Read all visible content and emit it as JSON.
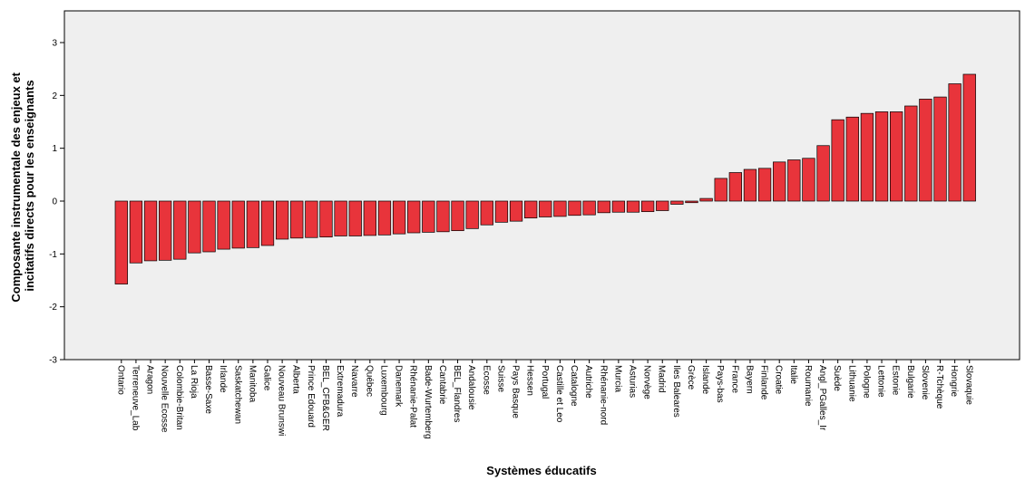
{
  "chart_data": {
    "type": "bar",
    "xlabel": "Systèmes éducatifs",
    "ylabel": [
      "Composante instrumentale des enjeux et",
      "incitatifs directs pour les enseignants"
    ],
    "ylim": [
      -3,
      3.6
    ],
    "yticks": [
      "3",
      "2",
      "1",
      "0",
      "-1",
      "-2",
      "-3"
    ],
    "grid": false,
    "bar_color": "#e8343b",
    "bar_stroke": "#000000",
    "plot_background": "#efefef",
    "categories": [
      "Ontario",
      "Terreneuve_Lab",
      "Aragon",
      "Nouvelle Ecosse",
      "Colombie-Britan",
      "La Rioja",
      "Basse-Saxe",
      "Irlande",
      "Saskatchewan",
      "Manitoba",
      "Galice",
      "Nouveau Brunswi",
      "Alberta",
      "Prince Edouard",
      "BEL_CFB&GER",
      "Extremadura",
      "Navarre",
      "Québec",
      "Luxembourg",
      "Danemark",
      "Rhénanie-Palat",
      "Bade-Wurtemberg",
      "Cantabrie",
      "BEL_Flandres",
      "Andalousie",
      "Ecosse",
      "Suisse",
      "Pays Basque",
      "Hessen",
      "Portugal",
      "Castille et Leo",
      "Catalogne",
      "Autriche",
      "Rhénanie-nord",
      "Murcia",
      "Asturias",
      "Norvège",
      "Madrid",
      "Iles Baleares",
      "Grèce",
      "Islande",
      "Pays-bas",
      "France",
      "Bayern",
      "Finlande",
      "Croatie",
      "Italie",
      "Roumanie",
      "Angl_PGalles_Ir",
      "Suède",
      "Lithuanie",
      "Pologne",
      "Lettonie",
      "Estonie",
      "Bulgarie",
      "Slovenie",
      "R-Tchèque",
      "Hongrie",
      "Slovaquie"
    ],
    "values": [
      -1.57,
      -1.17,
      -1.13,
      -1.12,
      -1.1,
      -0.98,
      -0.96,
      -0.91,
      -0.89,
      -0.88,
      -0.84,
      -0.72,
      -0.7,
      -0.69,
      -0.68,
      -0.66,
      -0.66,
      -0.65,
      -0.64,
      -0.62,
      -0.6,
      -0.59,
      -0.58,
      -0.56,
      -0.52,
      -0.45,
      -0.4,
      -0.38,
      -0.32,
      -0.3,
      -0.29,
      -0.27,
      -0.26,
      -0.22,
      -0.21,
      -0.21,
      -0.2,
      -0.18,
      -0.06,
      -0.03,
      0.05,
      0.43,
      0.54,
      0.6,
      0.62,
      0.74,
      0.78,
      0.81,
      1.05,
      1.54,
      1.59,
      1.66,
      1.69,
      1.69,
      1.8,
      1.93,
      1.97,
      2.22,
      2.4
    ]
  }
}
